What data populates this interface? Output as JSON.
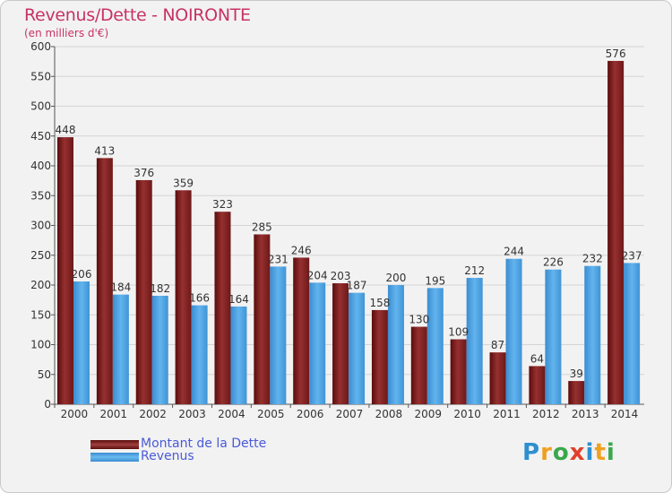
{
  "header": {
    "title": "Revenus/Dette - NOIRONTE",
    "subtitle": "(en milliers d'€)"
  },
  "legend": {
    "debt_label": "Montant de la Dette",
    "revenue_label": "Revenus"
  },
  "logo": {
    "text": "Proxiti"
  },
  "colors": {
    "debt": "#8b2020",
    "revenue": "#4aa0e0",
    "title": "#c83264",
    "legend_text": "#4a5ad8"
  },
  "chart_data": {
    "type": "bar",
    "title": "Revenus/Dette - NOIRONTE",
    "ylabel": "(en milliers d'€)",
    "xlabel": "",
    "categories": [
      "2000",
      "2001",
      "2002",
      "2003",
      "2004",
      "2005",
      "2006",
      "2007",
      "2008",
      "2009",
      "2010",
      "2011",
      "2012",
      "2013",
      "2014"
    ],
    "series": [
      {
        "name": "Montant de la Dette",
        "values": [
          448,
          413,
          376,
          359,
          323,
          285,
          246,
          203,
          158,
          130,
          109,
          87,
          64,
          39,
          576
        ]
      },
      {
        "name": "Revenus",
        "values": [
          206,
          184,
          182,
          166,
          164,
          231,
          204,
          187,
          200,
          195,
          212,
          244,
          226,
          232,
          237
        ]
      }
    ],
    "ylim": [
      0,
      600
    ],
    "yticks": [
      0,
      50,
      100,
      150,
      200,
      250,
      300,
      350,
      400,
      450,
      500,
      550,
      600
    ],
    "grid": true,
    "legend_position": "bottom-left"
  }
}
